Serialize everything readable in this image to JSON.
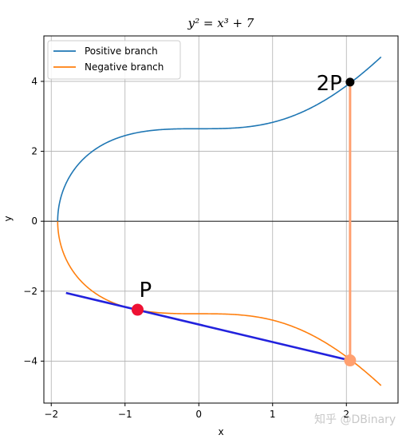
{
  "chart_data": {
    "type": "line",
    "title": "y² = x³ + 7",
    "xlabel": "x",
    "ylabel": "y",
    "xlim": [
      -2.1,
      2.7
    ],
    "ylim": [
      -5.2,
      5.3
    ],
    "xticks": [
      -2,
      -1,
      0,
      1,
      2
    ],
    "yticks": [
      -4,
      -2,
      0,
      2,
      4
    ],
    "grid": true,
    "legend_position": "top-left",
    "curve_x_range": [
      -1.913,
      2.47
    ],
    "series": [
      {
        "name": "Positive branch",
        "color": "#1f77b4",
        "formula": "sqrt(x^3+7)"
      },
      {
        "name": "Negative branch",
        "color": "#ff7f0e",
        "formula": "-sqrt(x^3+7)"
      }
    ],
    "tangent_line": {
      "color": "#2222dd",
      "x": [
        -1.8,
        2.05
      ],
      "y": [
        -2.05,
        -3.98
      ]
    },
    "vertical_line": {
      "color": "#ffa070",
      "x": [
        2.05,
        2.05
      ],
      "y": [
        -3.98,
        3.98
      ]
    },
    "points": [
      {
        "label": "P",
        "x": -0.83,
        "y": -2.53,
        "color": "#ee1133"
      },
      {
        "label": "",
        "x": 2.05,
        "y": -3.98,
        "color": "#ffa070"
      },
      {
        "label": "2P",
        "x": 2.05,
        "y": 3.98,
        "color": "#000000"
      }
    ],
    "horizontal_reference_line": {
      "y": 0,
      "color": "#000000"
    }
  },
  "watermark": "知乎 @DBinary"
}
